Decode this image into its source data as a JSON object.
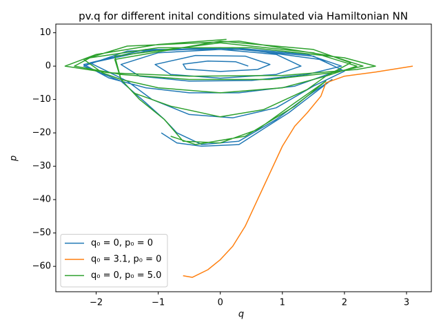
{
  "chart_data": {
    "type": "line",
    "title": "pv.q for different inital conditions simulated via Hamiltonian NN",
    "x_label": "q",
    "y_label": "p",
    "xlim": [
      -2.65,
      3.4
    ],
    "ylim": [
      -67.6,
      12.6
    ],
    "xticks": [
      {
        "value": -2,
        "label": "−2"
      },
      {
        "value": -1,
        "label": "−1"
      },
      0,
      1,
      2,
      3
    ],
    "yticks": [
      10,
      0,
      {
        "value": -10,
        "label": "−10"
      },
      {
        "value": -20,
        "label": "−20"
      },
      {
        "value": -30,
        "label": "−30"
      },
      {
        "value": -40,
        "label": "−40"
      },
      {
        "value": -50,
        "label": "−50"
      },
      {
        "value": -60,
        "label": "−60"
      }
    ],
    "legend_position": "lower left",
    "series": [
      {
        "name": "q₀ = 0, p₀ = 0",
        "color": "#1f77b4",
        "x": [
          0.45,
          0.25,
          -0.2,
          -0.6,
          -0.55,
          0,
          0.6,
          0.8,
          0.4,
          -0.4,
          -1.05,
          -0.8,
          0,
          0.9,
          1.3,
          0.9,
          0,
          -1,
          -1.6,
          -1.3,
          -0.5,
          0.5,
          1.4,
          1.95,
          1.4,
          0.2,
          -1.2,
          -2.2,
          -1.8,
          -1.2,
          -0.5,
          0.3,
          1.2,
          1.95,
          1.6,
          0.4,
          -1.2,
          -2.1,
          -1.5,
          -1.1,
          -0.5,
          0.2,
          0.9,
          1.5,
          2,
          1.5,
          0,
          -1.5,
          -2.2,
          -1.6,
          -1.2,
          -0.9,
          -0.7,
          -0.3,
          0.3,
          0.9,
          1.4,
          1.8,
          1.1,
          0.3,
          -0.3,
          -0.7,
          -0.95
        ],
        "values": [
          0,
          1.3,
          1.5,
          0.6,
          -0.9,
          -1.6,
          -1,
          0.5,
          3,
          3.2,
          0.5,
          -2.5,
          -3.6,
          -2.5,
          0,
          3.5,
          5,
          4,
          0.5,
          -3,
          -4.5,
          -4.3,
          -2.5,
          0,
          3.5,
          5.5,
          4.5,
          0.5,
          -3.5,
          -6.5,
          -8,
          -8,
          -6,
          -1,
          2,
          5,
          5,
          1,
          -4.5,
          -10,
          -14.5,
          -15.5,
          -12.5,
          -6,
          -1.5,
          3,
          5.5,
          4.5,
          0,
          -4.5,
          -11,
          -16,
          -20,
          -23.5,
          -22.5,
          -16,
          -9,
          -4,
          -14,
          -23.5,
          -24,
          -23,
          -20
        ]
      },
      {
        "name": "q₀ = 3.1, p₀ = 0",
        "color": "#ff7f0e",
        "x": [
          3.1,
          2.5,
          2,
          1.7,
          1.62,
          1.4,
          1.2,
          1,
          0.8,
          0.6,
          0.4,
          0.2,
          0,
          -0.2,
          -0.45,
          -0.6
        ],
        "values": [
          0,
          -1.8,
          -3,
          -5,
          -9,
          -14,
          -18,
          -24,
          -32,
          -40,
          -48,
          -54,
          -58,
          -61,
          -63.3,
          -62.8
        ]
      },
      {
        "name": "q₀ = 0, p₀ = 5.0",
        "color": "#2ca02c",
        "x": [
          0.1,
          -1,
          -2,
          -2.5,
          -1.8,
          -0.5,
          1,
          2.2,
          2.5,
          2,
          0.5,
          -1,
          -2.1,
          -2.35,
          -1.6,
          -0.5,
          0.8,
          1.8,
          2.3,
          1.8,
          0.3,
          -1.5,
          -2.2,
          -1.9,
          -1.6,
          -1,
          0,
          1,
          1.7,
          2.1,
          1.5,
          0,
          -1.7,
          -1.6,
          -1.4,
          -0.8,
          0,
          0.7,
          1.4,
          1.7,
          2.2,
          1.5,
          0,
          -1.7,
          -1.6,
          -1.3,
          -0.9,
          -0.6,
          0,
          0.6,
          1.2,
          1.7,
          1.2,
          0.4,
          -0.4,
          -0.8
        ],
        "values": [
          8,
          6.5,
          3.5,
          0,
          -2,
          -3,
          -2.8,
          -1,
          0,
          2.5,
          5.5,
          5.5,
          2.5,
          0,
          -2.5,
          -4,
          -4,
          -2,
          0,
          3,
          7.5,
          6,
          2,
          -2,
          -4,
          -6.5,
          -8,
          -6.5,
          -3,
          1,
          5,
          7.5,
          2,
          -4,
          -8,
          -12,
          -15.2,
          -13,
          -7,
          -3,
          0,
          4,
          7,
          3,
          -4,
          -10,
          -16,
          -22.5,
          -23,
          -19,
          -11,
          -4.5,
          -12,
          -21,
          -23.5,
          -21
        ]
      }
    ]
  }
}
